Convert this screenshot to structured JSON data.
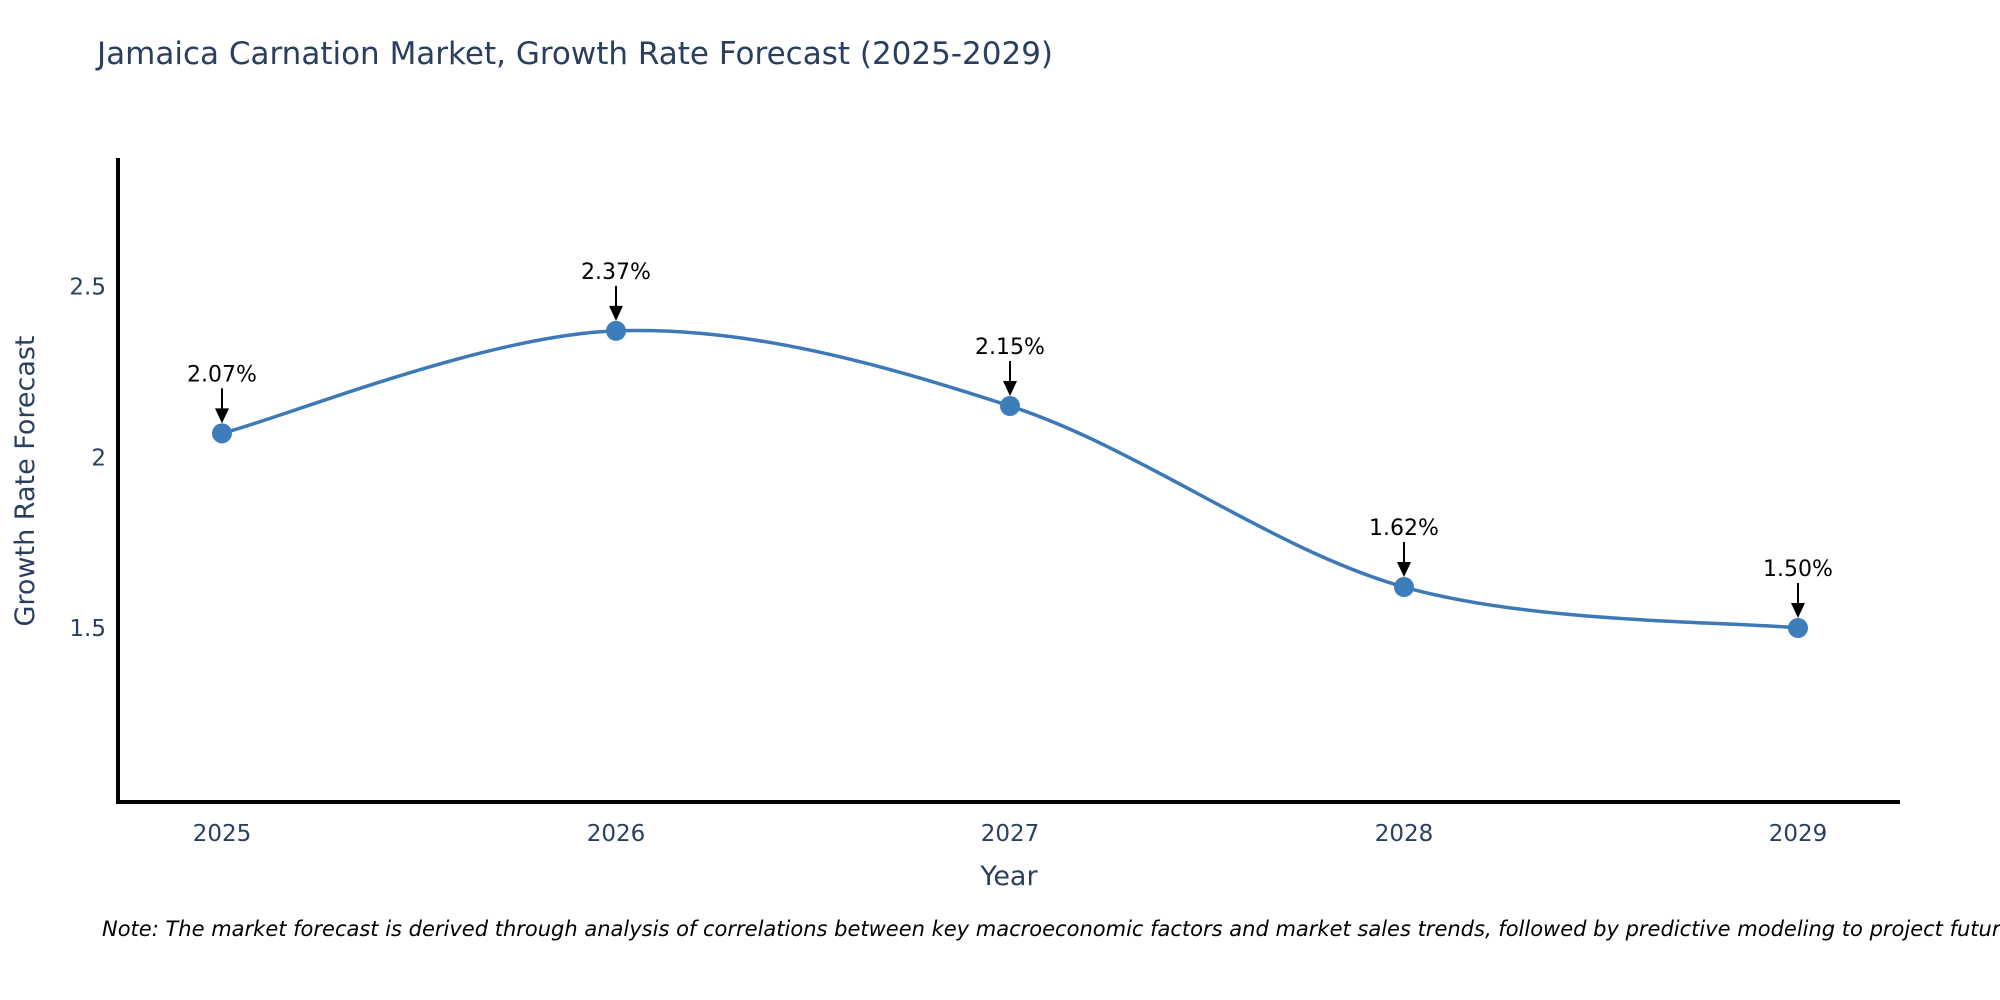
{
  "chart_data": {
    "type": "line",
    "title": "Jamaica Carnation Market, Growth Rate Forecast (2025-2029)",
    "xlabel": "Year",
    "ylabel": "Growth Rate Forecast",
    "x": [
      2025,
      2026,
      2027,
      2028,
      2029
    ],
    "values": [
      2.07,
      2.37,
      2.15,
      1.62,
      1.5
    ],
    "point_labels": [
      "2.07%",
      "2.37%",
      "2.15%",
      "1.62%",
      "1.50%"
    ],
    "x_tick_labels": [
      "2025",
      "2026",
      "2027",
      "2028",
      "2029"
    ],
    "y_ticks": [
      1.5,
      2,
      2.5
    ],
    "y_tick_labels": [
      "1.5",
      "2",
      "2.5"
    ],
    "ylim": [
      1.02,
      2.88
    ],
    "grid": false,
    "legend": "none",
    "line_shape": "spline",
    "line_color": "#3d79b6",
    "marker_color": "#3e7dbc",
    "axis_color": "#000000",
    "tick_label_color": "#2a3f5f",
    "axis_title_color": "#2a3f5f",
    "annotation_color": "#000000",
    "title_color": "#2a3f5f"
  },
  "note": {
    "text": "Note: The market forecast is derived through analysis of correlations between key macroeconomic factors and market sales trends, followed by predictive modeling to project future sales"
  }
}
